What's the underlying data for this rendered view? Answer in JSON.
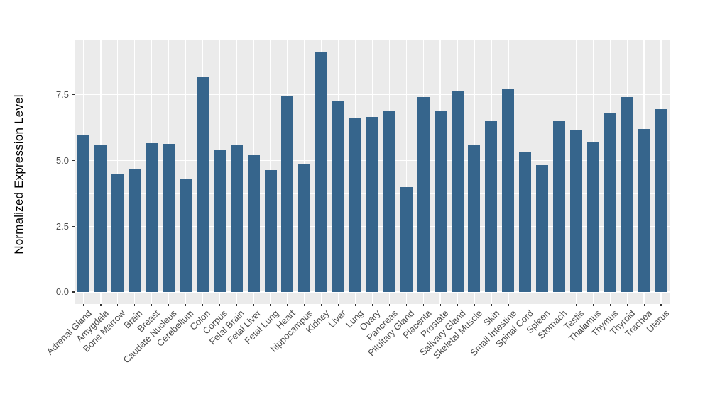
{
  "figure": {
    "background_color": "#FFFFFF",
    "panel_background_color": "#EBEBEB",
    "gridline_color": "#FFFFFF",
    "bar_color": "#36658C",
    "tick_label_color": "#4D4D4D",
    "axis_title_color": "#000000"
  },
  "y_axis": {
    "title": "Normalized Expression Level",
    "tick_labels": [
      "0.0",
      "2.5",
      "5.0",
      "7.5"
    ],
    "tick_values": [
      0,
      2.5,
      5.0,
      7.5
    ],
    "minor_tick_values": [
      1.25,
      3.75,
      6.25,
      8.75
    ]
  },
  "chart_data": {
    "type": "bar",
    "title": "",
    "xlabel": "",
    "ylabel": "Normalized Expression Level",
    "ylim": [
      -0.46,
      9.57
    ],
    "grid": "on",
    "legend": "none",
    "x_label_rotation_deg": 45,
    "categories": [
      "Adrenal Gland",
      "Amygdala",
      "Bone Marrow",
      "Brain",
      "Breast",
      "Caudate Nucleus",
      "Cerebellum",
      "Colon",
      "Corpus",
      "Fetal Brain",
      "Fetal Liver",
      "Fetal Lung",
      "Heart",
      "hippocampus",
      "Kidney",
      "Liver",
      "Lung",
      "Ovary",
      "Pancreas",
      "Pituitary Gland",
      "Placenta",
      "Prostate",
      "Salivary Gland",
      "Skeletal Muscle",
      "Skin",
      "Small Intestine",
      "Spinal Cord",
      "Spleen",
      "Stomach",
      "Testis",
      "Thalamus",
      "Thymus",
      "Thyroid",
      "Trachea",
      "Uterus"
    ],
    "values": [
      5.95,
      5.58,
      4.5,
      4.68,
      5.67,
      5.63,
      4.3,
      8.2,
      5.42,
      5.58,
      5.2,
      4.63,
      7.45,
      4.85,
      9.1,
      7.25,
      6.6,
      6.65,
      6.9,
      4.0,
      7.42,
      6.87,
      7.65,
      5.6,
      6.5,
      7.75,
      5.3,
      4.83,
      6.5,
      6.18,
      5.72,
      6.8,
      7.42,
      6.2,
      6.95
    ]
  }
}
